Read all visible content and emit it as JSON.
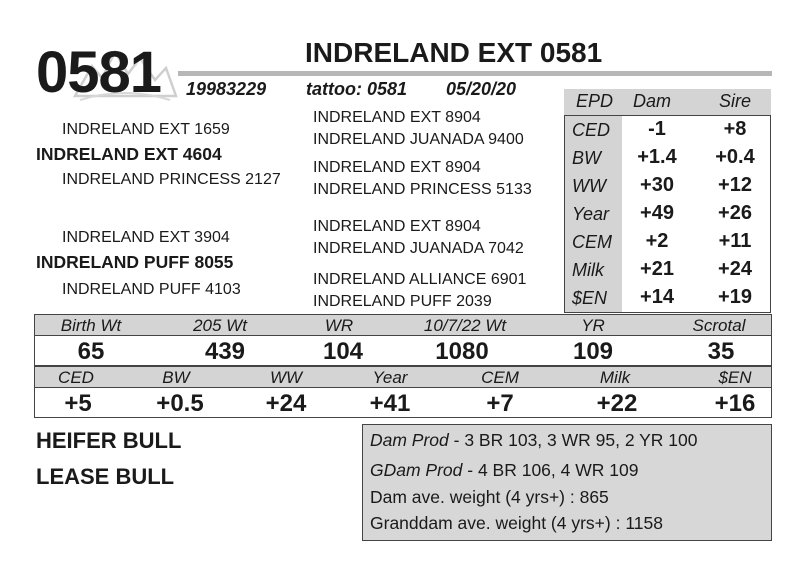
{
  "header": {
    "lot_number": "0581",
    "title": "INDRELAND EXT 0581",
    "registration": "19983229",
    "tattoo": "tattoo: 0581",
    "birth_date": "05/20/20"
  },
  "pedigree": {
    "sire_sire": "INDRELAND EXT 1659",
    "sire": "INDRELAND EXT 4604",
    "sire_dam": "INDRELAND PRINCESS 2127",
    "dam_sire": "INDRELAND EXT 3904",
    "dam": "INDRELAND PUFF 8055",
    "dam_dam": "INDRELAND PUFF 4103",
    "far": [
      "INDRELAND EXT 8904",
      "INDRELAND JUANADA 9400",
      "INDRELAND EXT 8904",
      "INDRELAND PRINCESS 5133",
      "INDRELAND EXT 8904",
      "INDRELAND JUANADA 7042",
      "INDRELAND ALLIANCE 6901",
      "INDRELAND PUFF 2039"
    ]
  },
  "epd_table": {
    "headers": [
      "EPD",
      "Dam",
      "Sire"
    ],
    "rows": [
      {
        "trait": "CED",
        "dam": "-1",
        "sire": "+8"
      },
      {
        "trait": "BW",
        "dam": "+1.4",
        "sire": "+0.4"
      },
      {
        "trait": "WW",
        "dam": "+30",
        "sire": "+12"
      },
      {
        "trait": "Year",
        "dam": "+49",
        "sire": "+26"
      },
      {
        "trait": "CEM",
        "dam": "+2",
        "sire": "+11"
      },
      {
        "trait": "Milk",
        "dam": "+21",
        "sire": "+24"
      },
      {
        "trait": "$EN",
        "dam": "+14",
        "sire": "+19"
      }
    ]
  },
  "performance": {
    "headers": [
      "Birth Wt",
      "205 Wt",
      "WR",
      "10/7/22 Wt",
      "YR",
      "Scrotal"
    ],
    "values": [
      "65",
      "439",
      "104",
      "1080",
      "109",
      "35"
    ]
  },
  "epds": {
    "headers": [
      "CED",
      "BW",
      "WW",
      "Year",
      "CEM",
      "Milk",
      "$EN"
    ],
    "values": [
      "+5",
      "+0.5",
      "+24",
      "+41",
      "+7",
      "+22",
      "+16"
    ]
  },
  "labels": {
    "heifer": "HEIFER BULL",
    "lease": "LEASE BULL"
  },
  "production": {
    "dam_label": "Dam Prod",
    "dam_text": " - 3 BR 103, 3 WR 95, 2 YR 100",
    "gdam_label": "GDam Prod",
    "gdam_text": " - 4 BR 106, 4 WR 109",
    "dam_weight": "Dam ave. weight (4 yrs+) : 865",
    "granddam_weight": "Granddam ave. weight (4 yrs+) : 1158"
  },
  "colors": {
    "header_fill": "#d4d4d4",
    "rule": "#b7b7b7",
    "text": "#1a1a1a"
  }
}
